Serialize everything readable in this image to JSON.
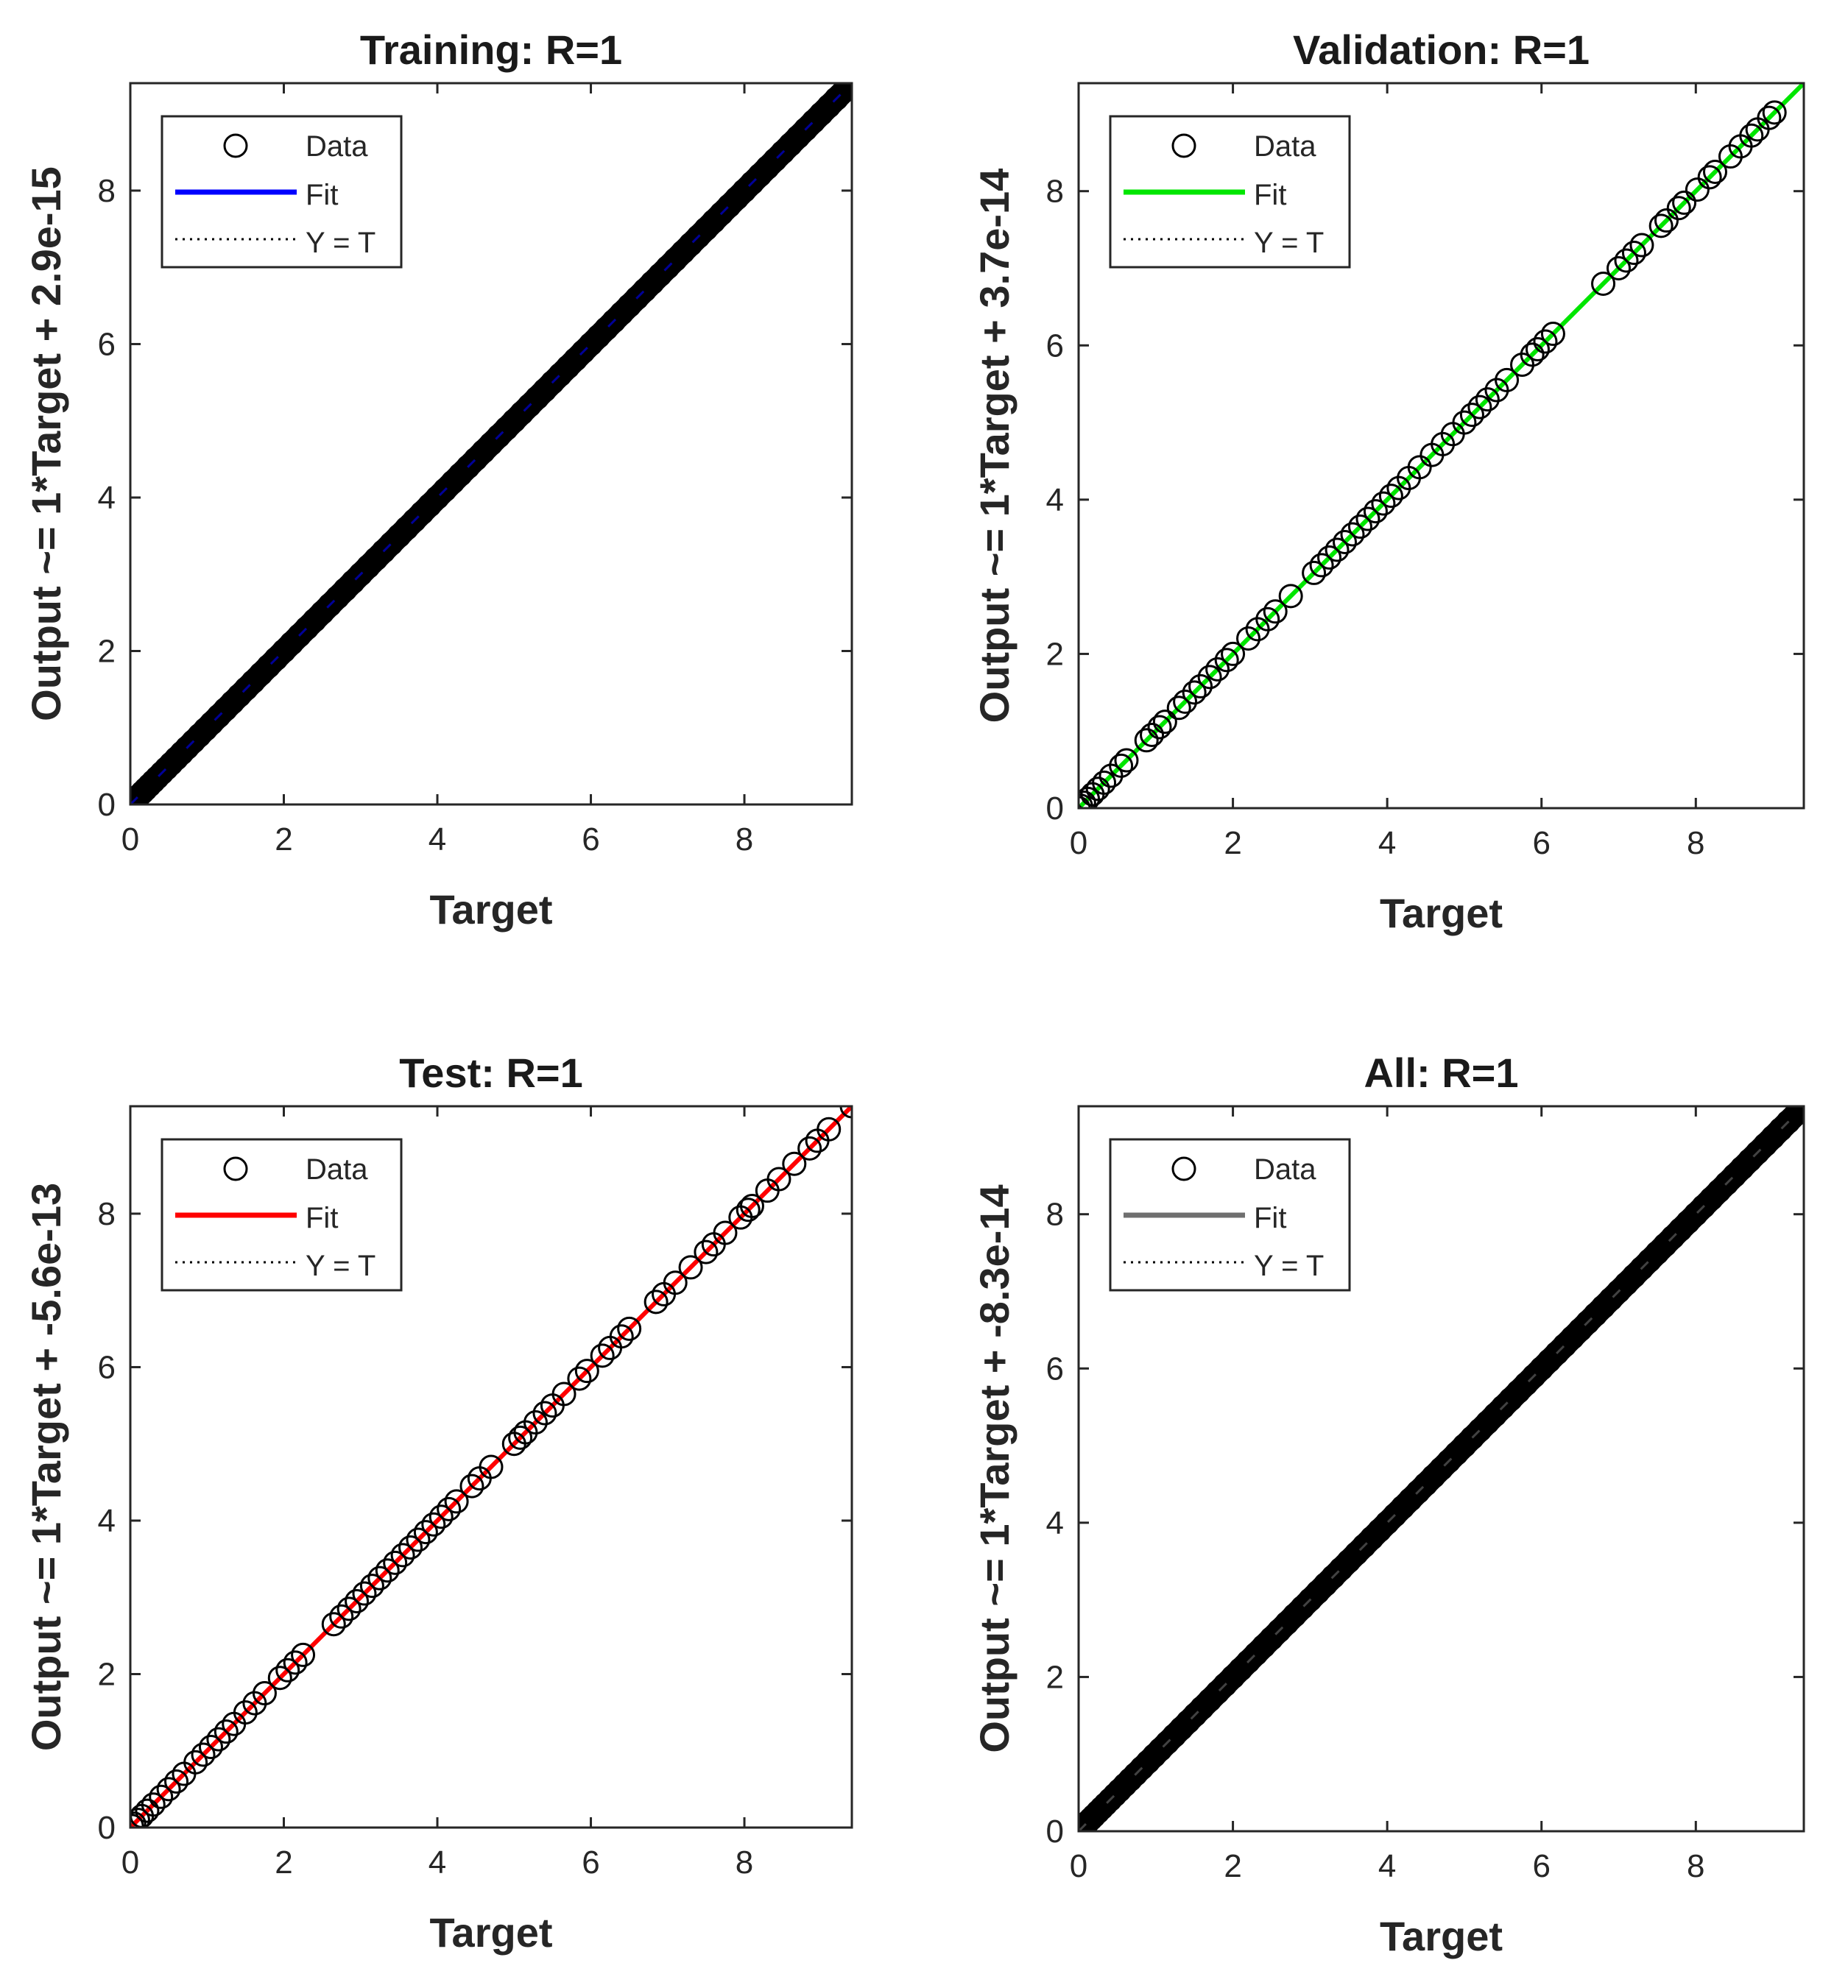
{
  "figure": {
    "background": "#ffffff"
  },
  "chart_data": [
    {
      "type": "scatter",
      "id": "training",
      "title": "Training: R=1",
      "xlabel": "Target",
      "ylabel": "Output ~= 1*Target + 2.9e-15",
      "xlim": [
        0,
        9.4
      ],
      "ylim": [
        0,
        9.4
      ],
      "xticks": [
        "0",
        "2",
        "4",
        "6",
        "8"
      ],
      "yticks": [
        "0",
        "2",
        "4",
        "6",
        "8"
      ],
      "grid": false,
      "legend_position": "top-left",
      "fit_color": "#0000ff",
      "fit": {
        "slope": 1,
        "intercept": 2.9e-15
      },
      "legend": {
        "data": "Data",
        "fit": "Fit",
        "identity": "Y = T"
      },
      "series": [
        {
          "name": "Data",
          "values": [
            0,
            0.02,
            0.05,
            0.08,
            0.12,
            0.16,
            0.2,
            0.25,
            0.3,
            0.35,
            0.41,
            0.47,
            0.53,
            0.6,
            0.67,
            0.74,
            0.82,
            0.9,
            0.98,
            1.06,
            1.15,
            1.24,
            1.33,
            1.42,
            1.51,
            1.6,
            1.7,
            1.8,
            1.9,
            2.0,
            2.1,
            2.2,
            2.3,
            2.4,
            2.5,
            2.6,
            2.7,
            2.8,
            2.9,
            3.0,
            3.1,
            3.2,
            3.3,
            3.4,
            3.5,
            3.6,
            3.7,
            3.8,
            3.9,
            4.0,
            4.1,
            4.2,
            4.3,
            4.4,
            4.5,
            4.6,
            4.7,
            4.8,
            4.9,
            5.0,
            5.1,
            5.2,
            5.3,
            5.4,
            5.5,
            5.6,
            5.7,
            5.8,
            5.9,
            6.0,
            6.1,
            6.2,
            6.3,
            6.4,
            6.5,
            6.6,
            6.7,
            6.8,
            6.9,
            7.0,
            7.1,
            7.2,
            7.3,
            7.4,
            7.5,
            7.6,
            7.7,
            7.8,
            7.9,
            8.0,
            8.1,
            8.2,
            8.3,
            8.4,
            8.5,
            8.6,
            8.7,
            8.8,
            8.9,
            9.0,
            9.1,
            9.2,
            9.3,
            9.35
          ]
        }
      ]
    },
    {
      "type": "scatter",
      "id": "validation",
      "title": "Validation: R=1",
      "xlabel": "Target",
      "ylabel": "Output ~= 1*Target + 3.7e-14",
      "xlim": [
        0,
        9.4
      ],
      "ylim": [
        0,
        9.4
      ],
      "xticks": [
        "0",
        "2",
        "4",
        "6",
        "8"
      ],
      "yticks": [
        "0",
        "2",
        "4",
        "6",
        "8"
      ],
      "grid": false,
      "legend_position": "top-left",
      "fit_color": "#00e600",
      "fit": {
        "slope": 1,
        "intercept": 3.7e-14
      },
      "legend": {
        "data": "Data",
        "fit": "Fit",
        "identity": "Y = T"
      },
      "series": [
        {
          "name": "Data",
          "values": [
            0,
            0.03,
            0.07,
            0.12,
            0.18,
            0.25,
            0.33,
            0.42,
            0.55,
            0.62,
            0.88,
            0.95,
            1.05,
            1.12,
            1.3,
            1.38,
            1.5,
            1.58,
            1.7,
            1.8,
            1.92,
            2.0,
            2.2,
            2.32,
            2.45,
            2.55,
            2.75,
            3.05,
            3.15,
            3.25,
            3.35,
            3.45,
            3.55,
            3.65,
            3.75,
            3.85,
            3.95,
            4.05,
            4.15,
            4.28,
            4.42,
            4.58,
            4.72,
            4.85,
            5.0,
            5.1,
            5.2,
            5.3,
            5.42,
            5.55,
            5.75,
            5.88,
            5.95,
            6.05,
            6.15,
            6.8,
            7.0,
            7.1,
            7.2,
            7.3,
            7.55,
            7.62,
            7.78,
            7.85,
            8.02,
            8.18,
            8.25,
            8.45,
            8.58,
            8.72,
            8.8,
            8.95,
            9.02
          ]
        }
      ]
    },
    {
      "type": "scatter",
      "id": "test",
      "title": "Test: R=1",
      "xlabel": "Target",
      "ylabel": "Output ~= 1*Target + -5.6e-13",
      "xlim": [
        0,
        9.4
      ],
      "ylim": [
        0,
        9.4
      ],
      "xticks": [
        "0",
        "2",
        "4",
        "6",
        "8"
      ],
      "yticks": [
        "0",
        "2",
        "4",
        "6",
        "8"
      ],
      "grid": false,
      "legend_position": "top-left",
      "fit_color": "#ff0000",
      "fit": {
        "slope": 1,
        "intercept": -5.6e-13
      },
      "legend": {
        "data": "Data",
        "fit": "Fit",
        "identity": "Y = T"
      },
      "series": [
        {
          "name": "Data",
          "values": [
            0.02,
            0.05,
            0.1,
            0.15,
            0.22,
            0.3,
            0.4,
            0.5,
            0.6,
            0.7,
            0.85,
            0.95,
            1.05,
            1.15,
            1.25,
            1.35,
            1.5,
            1.62,
            1.75,
            1.95,
            2.05,
            2.15,
            2.25,
            2.65,
            2.75,
            2.85,
            2.95,
            3.05,
            3.15,
            3.25,
            3.35,
            3.45,
            3.55,
            3.65,
            3.75,
            3.85,
            3.95,
            4.05,
            4.15,
            4.25,
            4.45,
            4.55,
            4.7,
            5.0,
            5.08,
            5.15,
            5.28,
            5.4,
            5.5,
            5.65,
            5.85,
            5.95,
            6.15,
            6.25,
            6.4,
            6.5,
            6.85,
            6.95,
            7.1,
            7.3,
            7.5,
            7.6,
            7.75,
            7.95,
            8.05,
            8.1,
            8.3,
            8.45,
            8.65,
            8.85,
            8.95,
            9.1,
            9.4
          ]
        }
      ]
    },
    {
      "type": "scatter",
      "id": "all",
      "title": "All: R=1",
      "xlabel": "Target",
      "ylabel": "Output ~= 1*Target + -8.3e-14",
      "xlim": [
        0,
        9.4
      ],
      "ylim": [
        0,
        9.4
      ],
      "xticks": [
        "0",
        "2",
        "4",
        "6",
        "8"
      ],
      "yticks": [
        "0",
        "2",
        "4",
        "6",
        "8"
      ],
      "grid": false,
      "legend_position": "top-left",
      "fit_color": "#6f6f6f",
      "fit": {
        "slope": 1,
        "intercept": -8.3e-14
      },
      "legend": {
        "data": "Data",
        "fit": "Fit",
        "identity": "Y = T"
      },
      "series": [
        {
          "name": "Data",
          "values": [
            0,
            0.02,
            0.05,
            0.08,
            0.12,
            0.16,
            0.2,
            0.25,
            0.3,
            0.35,
            0.41,
            0.47,
            0.53,
            0.6,
            0.67,
            0.74,
            0.82,
            0.9,
            0.98,
            1.06,
            1.15,
            1.24,
            1.33,
            1.42,
            1.51,
            1.6,
            1.7,
            1.8,
            1.9,
            2.0,
            2.1,
            2.2,
            2.3,
            2.4,
            2.5,
            2.6,
            2.7,
            2.8,
            2.9,
            3.0,
            3.1,
            3.2,
            3.3,
            3.4,
            3.5,
            3.6,
            3.7,
            3.8,
            3.9,
            4.0,
            4.1,
            4.2,
            4.3,
            4.4,
            4.5,
            4.6,
            4.7,
            4.8,
            4.9,
            5.0,
            5.1,
            5.2,
            5.3,
            5.4,
            5.5,
            5.6,
            5.7,
            5.8,
            5.9,
            6.0,
            6.1,
            6.2,
            6.3,
            6.4,
            6.5,
            6.6,
            6.7,
            6.8,
            6.9,
            7.0,
            7.1,
            7.2,
            7.3,
            7.4,
            7.5,
            7.6,
            7.7,
            7.8,
            7.9,
            8.0,
            8.1,
            8.2,
            8.3,
            8.4,
            8.5,
            8.6,
            8.7,
            8.8,
            8.9,
            9.0,
            9.1,
            9.2,
            9.3,
            9.4
          ]
        }
      ]
    }
  ]
}
